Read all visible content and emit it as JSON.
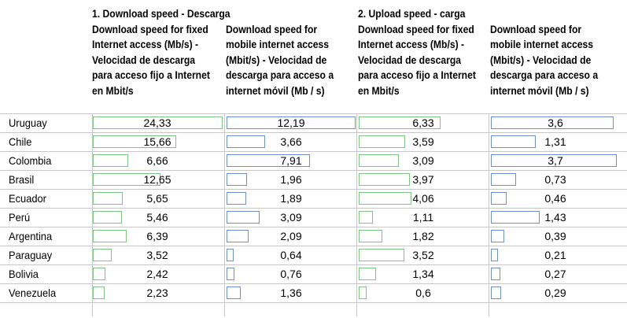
{
  "chart_data": {
    "type": "table",
    "groups": [
      {
        "title": "1. Download speed - Descarga",
        "columns": [
          0,
          1
        ]
      },
      {
        "title": "2. Upload speed - carga",
        "columns": [
          2,
          3
        ]
      }
    ],
    "columns": [
      {
        "header_lines": [
          "Download speed for fixed",
          "Internet access (Mb/s) -",
          "Velocidad de descarga",
          "para acceso fijo a Internet",
          "en Mbit/s"
        ],
        "max": 24.33,
        "color": "#7cc47f"
      },
      {
        "header_lines": [
          "Download speed for",
          "mobile internet access",
          "(Mbit/s) - Velocidad de",
          "descarga para acceso a",
          "internet móvil (Mb / s)"
        ],
        "max": 12.19,
        "color": "#6f8fca"
      },
      {
        "header_lines": [
          "Download speed for fixed",
          "Internet access (Mb/s) -",
          "Velocidad de descarga",
          "para acceso fijo a Internet",
          "en Mbit/s"
        ],
        "max": 6.33,
        "color": "#7cc47f"
      },
      {
        "header_lines": [
          "Download speed for",
          "mobile internet access",
          "(Mbit/s) - Velocidad de",
          "descarga para acceso a",
          "internet móvil (Mb / s)"
        ],
        "max": 3.7,
        "color": "#6f8fca"
      }
    ],
    "categories": [
      "Uruguay",
      "Chile",
      "Colombia",
      "Brasil",
      "Ecuador",
      "Perú",
      "Argentina",
      "Paraguay",
      "Bolivia",
      "Venezuela"
    ],
    "values": [
      [
        "24,33",
        "12,19",
        "6,33",
        "3,6"
      ],
      [
        "15,66",
        "3,66",
        "3,59",
        "1,31"
      ],
      [
        "6,66",
        "7,91",
        "3,09",
        "3,7"
      ],
      [
        "12,65",
        "1,96",
        "3,97",
        "0,73"
      ],
      [
        "5,65",
        "1,89",
        "4,06",
        "0,46"
      ],
      [
        "5,46",
        "3,09",
        "1,11",
        "1,43"
      ],
      [
        "6,39",
        "2,09",
        "1,82",
        "0,39"
      ],
      [
        "3,52",
        "0,64",
        "3,52",
        "0,21"
      ],
      [
        "2,42",
        "0,76",
        "1,34",
        "0,27"
      ],
      [
        "2,23",
        "1,36",
        "0,6",
        "0,29"
      ]
    ]
  }
}
